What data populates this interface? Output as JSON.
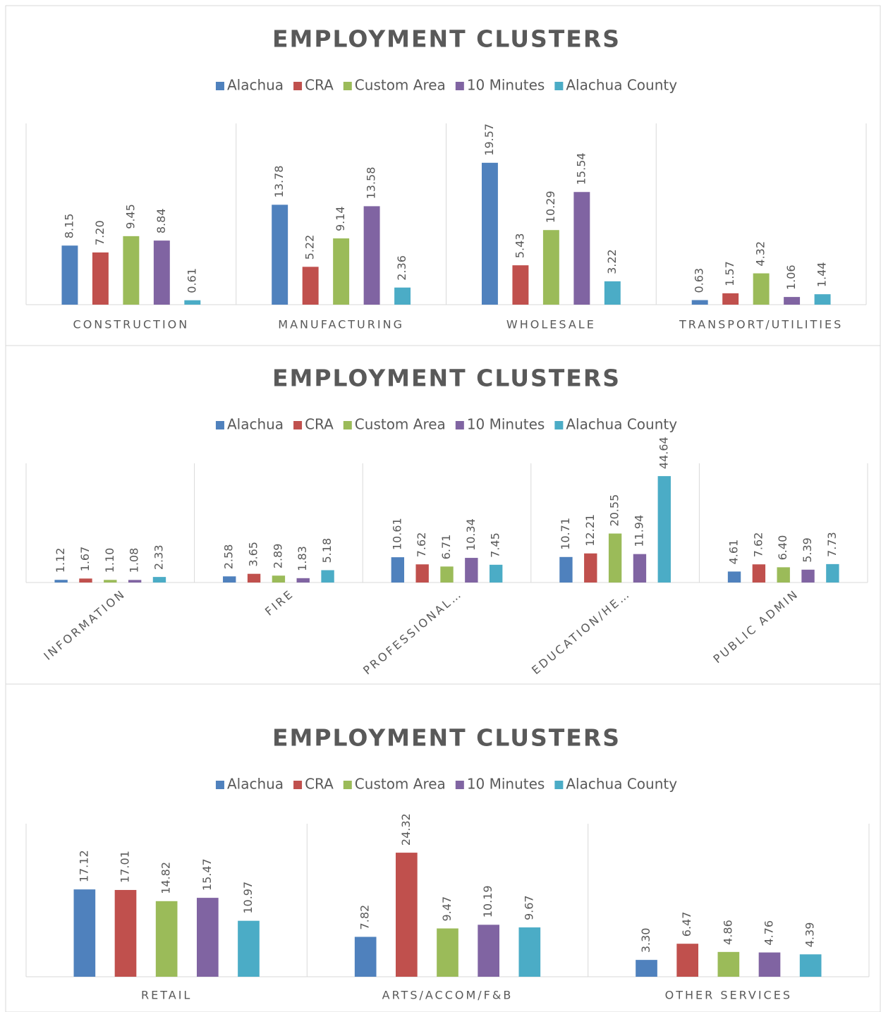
{
  "chart_data": [
    {
      "type": "bar",
      "title": "EMPLOYMENT CLUSTERS",
      "categories": [
        "CONSTRUCTION",
        "MANUFACTURING",
        "WHOLESALE",
        "TRANSPORT/UTILITIES"
      ],
      "ylim": [
        0,
        25
      ],
      "series": [
        {
          "name": "Alachua",
          "color": "#4f81bd",
          "values": [
            8.15,
            13.78,
            19.57,
            0.63
          ],
          "value_labels": [
            "8.15",
            "13.78",
            "19.57",
            "0.63"
          ]
        },
        {
          "name": "CRA",
          "color": "#c0504d",
          "values": [
            7.2,
            5.22,
            5.43,
            1.57
          ],
          "value_labels": [
            "7.20",
            "5.22",
            "5.43",
            "1.57"
          ]
        },
        {
          "name": "Custom Area",
          "color": "#9bbb59",
          "values": [
            9.45,
            9.14,
            10.29,
            4.32
          ],
          "value_labels": [
            "9.45",
            "9.14",
            "10.29",
            "4.32"
          ]
        },
        {
          "name": "10 Minutes",
          "color": "#8064a2",
          "values": [
            8.84,
            13.58,
            15.54,
            1.06
          ],
          "value_labels": [
            "8.84",
            "13.58",
            "15.54",
            "1.06"
          ]
        },
        {
          "name": "Alachua County",
          "color": "#4bacc6",
          "values": [
            0.61,
            2.36,
            3.22,
            1.44
          ],
          "value_labels": [
            "0.61",
            "2.36",
            "3.22",
            "1.44"
          ]
        }
      ]
    },
    {
      "type": "bar",
      "title": "EMPLOYMENT CLUSTERS",
      "categories": [
        "INFORMATION",
        "FIRE",
        "PROFESSIONAL…",
        "EDUCATION/HE…",
        "PUBLIC ADMIN"
      ],
      "ylim": [
        0,
        50
      ],
      "series": [
        {
          "name": "Alachua",
          "color": "#4f81bd",
          "values": [
            1.12,
            2.58,
            10.61,
            10.71,
            4.61
          ],
          "value_labels": [
            "1.12",
            "2.58",
            "10.61",
            "10.71",
            "4.61"
          ]
        },
        {
          "name": "CRA",
          "color": "#c0504d",
          "values": [
            1.67,
            3.65,
            7.62,
            12.21,
            7.62
          ],
          "value_labels": [
            "1.67",
            "3.65",
            "7.62",
            "12.21",
            "7.62"
          ]
        },
        {
          "name": "Custom Area",
          "color": "#9bbb59",
          "values": [
            1.1,
            2.89,
            6.71,
            20.55,
            6.4
          ],
          "value_labels": [
            "1.10",
            "2.89",
            "6.71",
            "20.55",
            "6.40"
          ]
        },
        {
          "name": "10 Minutes",
          "color": "#8064a2",
          "values": [
            1.08,
            1.83,
            10.34,
            11.94,
            5.39
          ],
          "value_labels": [
            "1.08",
            "1.83",
            "10.34",
            "11.94",
            "5.39"
          ]
        },
        {
          "name": "Alachua County",
          "color": "#4bacc6",
          "values": [
            2.33,
            5.18,
            7.45,
            44.64,
            7.73
          ],
          "value_labels": [
            "2.33",
            "5.18",
            "7.45",
            "44.64",
            "7.73"
          ]
        }
      ]
    },
    {
      "type": "bar",
      "title": "EMPLOYMENT CLUSTERS",
      "categories": [
        "RETAIL",
        "ARTS/ACCOM/F&B",
        "OTHER SERVICES"
      ],
      "ylim": [
        0,
        30
      ],
      "series": [
        {
          "name": "Alachua",
          "color": "#4f81bd",
          "values": [
            17.12,
            7.82,
            3.3
          ],
          "value_labels": [
            "17.12",
            "7.82",
            "3.30"
          ]
        },
        {
          "name": "CRA",
          "color": "#c0504d",
          "values": [
            17.01,
            24.32,
            6.47
          ],
          "value_labels": [
            "17.01",
            "24.32",
            "6.47"
          ]
        },
        {
          "name": "Custom Area",
          "color": "#9bbb59",
          "values": [
            14.82,
            9.47,
            4.86
          ],
          "value_labels": [
            "14.82",
            "9.47",
            "4.86"
          ]
        },
        {
          "name": "10 Minutes",
          "color": "#8064a2",
          "values": [
            15.47,
            10.19,
            4.76
          ],
          "value_labels": [
            "15.47",
            "10.19",
            "4.76"
          ]
        },
        {
          "name": "Alachua County",
          "color": "#4bacc6",
          "values": [
            10.97,
            9.67,
            4.39
          ],
          "value_labels": [
            "10.97",
            "9.67",
            "4.39"
          ]
        }
      ]
    }
  ]
}
